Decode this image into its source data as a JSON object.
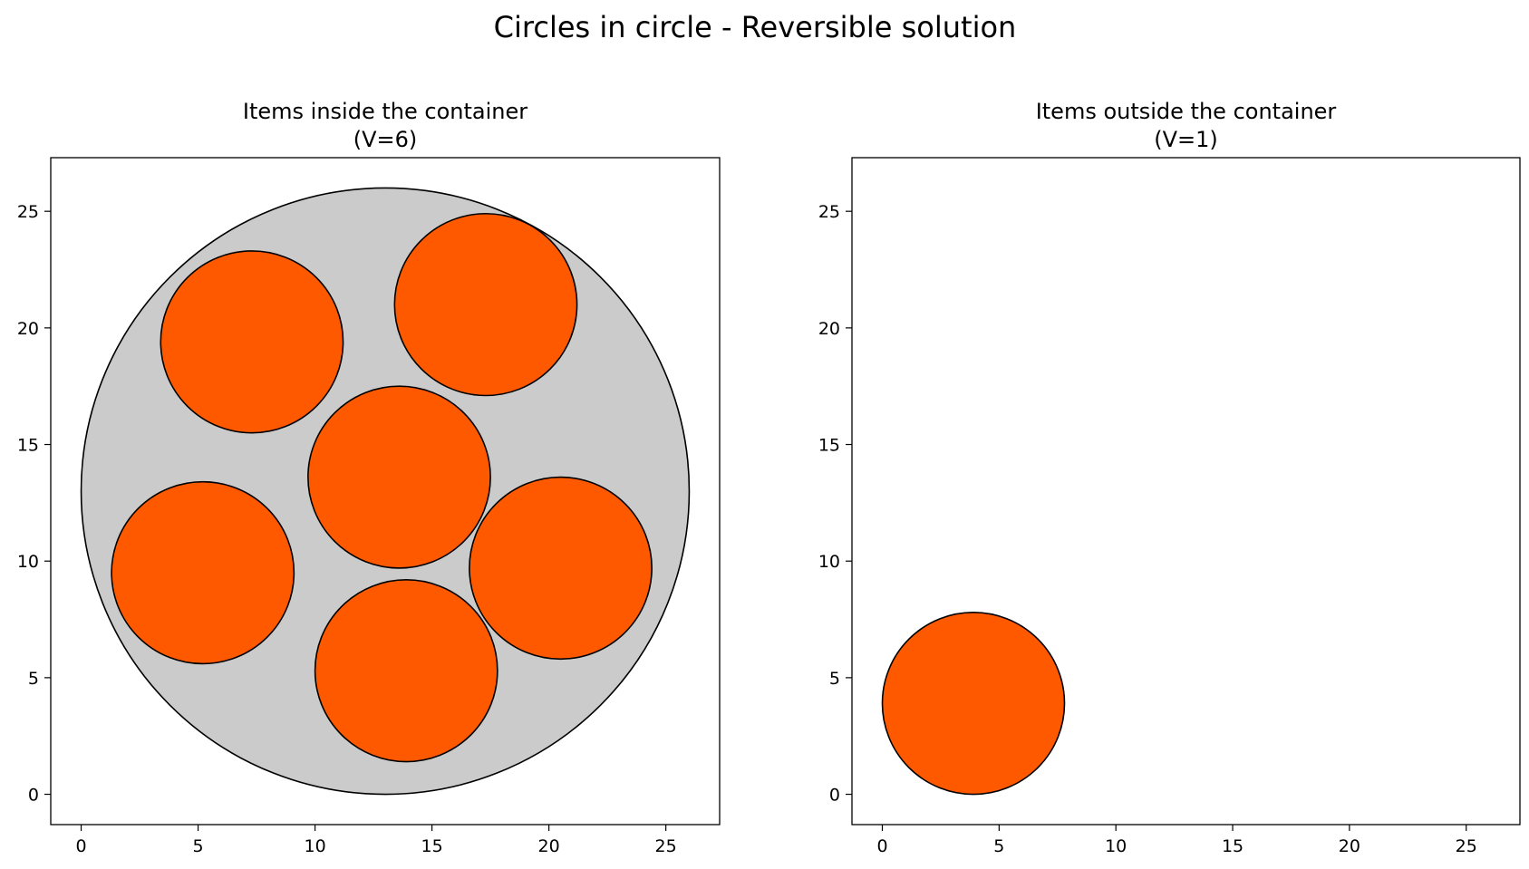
{
  "figure": {
    "suptitle": "Circles in circle - Reversible solution"
  },
  "colors": {
    "container_fill": "#cbcbcb",
    "item_fill": "#ff5900",
    "edge": "#000000",
    "background": "#ffffff"
  },
  "chart_data": [
    {
      "type": "scatter",
      "title_line1": "Items inside the container",
      "title_line2": "(V=6)",
      "xlim": [
        -1.3,
        27.3
      ],
      "ylim": [
        -1.3,
        27.3
      ],
      "xticks": [
        0,
        5,
        10,
        15,
        20,
        25
      ],
      "yticks": [
        0,
        5,
        10,
        15,
        20,
        25
      ],
      "grid": false,
      "container": {
        "cx": 13.0,
        "cy": 13.0,
        "r": 13.0
      },
      "items": [
        {
          "cx": 7.3,
          "cy": 19.4,
          "r": 3.9
        },
        {
          "cx": 17.3,
          "cy": 21.0,
          "r": 3.9
        },
        {
          "cx": 13.6,
          "cy": 13.6,
          "r": 3.9
        },
        {
          "cx": 5.2,
          "cy": 9.5,
          "r": 3.9
        },
        {
          "cx": 20.5,
          "cy": 9.7,
          "r": 3.9
        },
        {
          "cx": 13.9,
          "cy": 5.3,
          "r": 3.9
        }
      ]
    },
    {
      "type": "scatter",
      "title_line1": "Items outside the container",
      "title_line2": "(V=1)",
      "xlim": [
        -1.3,
        27.3
      ],
      "ylim": [
        -1.3,
        27.3
      ],
      "xticks": [
        0,
        5,
        10,
        15,
        20,
        25
      ],
      "yticks": [
        0,
        5,
        10,
        15,
        20,
        25
      ],
      "grid": false,
      "container": null,
      "items": [
        {
          "cx": 3.9,
          "cy": 3.9,
          "r": 3.9
        }
      ]
    }
  ]
}
